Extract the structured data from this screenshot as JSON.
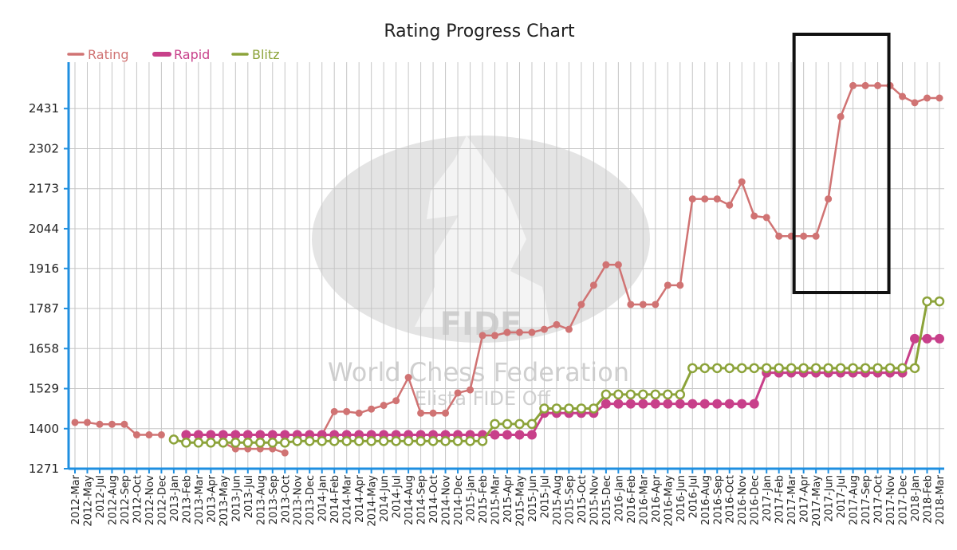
{
  "chart_data": {
    "type": "line",
    "title": "Rating Progress Chart",
    "watermark": {
      "line1": "FIDE",
      "line2": "World Chess Federation",
      "line3": "Elista FIDE Off"
    },
    "y_ticks": [
      1271,
      1400,
      1529,
      1658,
      1787,
      1916,
      2044,
      2173,
      2302,
      2431
    ],
    "ylim": [
      1271,
      2560
    ],
    "grid": true,
    "legend_position": "top-left",
    "highlight_box": {
      "from": "2017-Apr",
      "to": "2017-Oct"
    },
    "categories": [
      "2012-Mar",
      "2012-May",
      "2012-Jul",
      "2012-Aug",
      "2012-Sep",
      "2012-Oct",
      "2012-Nov",
      "2012-Dec",
      "2013-Jan",
      "2013-Feb",
      "2013-Mar",
      "2013-Apr",
      "2013-May",
      "2013-Jun",
      "2013-Jul",
      "2013-Aug",
      "2013-Sep",
      "2013-Oct",
      "2013-Nov",
      "2013-Dec",
      "2014-Jan",
      "2014-Feb",
      "2014-Mar",
      "2014-Apr",
      "2014-May",
      "2014-Jun",
      "2014-Jul",
      "2014-Aug",
      "2014-Sep",
      "2014-Oct",
      "2014-Nov",
      "2014-Dec",
      "2015-Jan",
      "2015-Feb",
      "2015-Mar",
      "2015-Apr",
      "2015-May",
      "2015-Jun",
      "2015-Jul",
      "2015-Aug",
      "2015-Sep",
      "2015-Oct",
      "2015-Nov",
      "2015-Dec",
      "2016-Jan",
      "2016-Feb",
      "2016-Mar",
      "2016-Apr",
      "2016-May",
      "2016-Jun",
      "2016-Jul",
      "2016-Aug",
      "2016-Sep",
      "2016-Oct",
      "2016-Nov",
      "2016-Dec",
      "2017-Jan",
      "2017-Feb",
      "2017-Mar",
      "2017-Apr",
      "2017-May",
      "2017-Jun",
      "2017-Jul",
      "2017-Aug",
      "2017-Sep",
      "2017-Oct",
      "2017-Nov",
      "2017-Dec",
      "2018-Jan",
      "2018-Feb",
      "2018-Mar"
    ],
    "series": [
      {
        "name": "Rating",
        "color": "#d07373",
        "marker": "small-dot",
        "values": [
          1420,
          1420,
          1414,
          1414,
          1414,
          1380,
          1380,
          1380,
          null,
          1355,
          1355,
          1355,
          1355,
          1335,
          1335,
          1335,
          1335,
          1322,
          null,
          null,
          1380,
          1455,
          1455,
          1450,
          1463,
          1475,
          1490,
          1565,
          1450,
          1450,
          1450,
          1515,
          1525,
          1700,
          1700,
          1710,
          1710,
          1710,
          1720,
          1735,
          1720,
          1800,
          1862,
          1928,
          1928,
          1800,
          1800,
          1800,
          1862,
          1862,
          2140,
          2140,
          2140,
          2120,
          2195,
          2085,
          2080,
          2020,
          2020,
          2020,
          2020,
          2140,
          2405,
          2505,
          2505,
          2505,
          2505,
          2470,
          2450,
          2465,
          2465
        ]
      },
      {
        "name": "Rapid",
        "color": "#c8408a",
        "marker": "large-dot",
        "values": [
          null,
          null,
          null,
          null,
          null,
          null,
          null,
          null,
          null,
          1380,
          1380,
          1380,
          1380,
          1380,
          1380,
          1380,
          1380,
          1380,
          1380,
          1380,
          1380,
          1380,
          1380,
          1380,
          1380,
          1380,
          1380,
          1380,
          1380,
          1380,
          1380,
          1380,
          1380,
          1380,
          1380,
          1380,
          1380,
          1380,
          1450,
          1450,
          1450,
          1450,
          1450,
          1480,
          1480,
          1480,
          1480,
          1480,
          1480,
          1480,
          1480,
          1480,
          1480,
          1480,
          1480,
          1480,
          1580,
          1580,
          1580,
          1580,
          1580,
          1580,
          1580,
          1580,
          1580,
          1580,
          1580,
          1580,
          1690,
          1690,
          1690
        ]
      },
      {
        "name": "Blitz",
        "color": "#8ca33a",
        "marker": "hollow-circle",
        "values": [
          null,
          null,
          null,
          null,
          null,
          null,
          null,
          null,
          1365,
          1355,
          1355,
          1355,
          1355,
          1355,
          1355,
          1355,
          1355,
          1355,
          1360,
          1360,
          1360,
          1360,
          1360,
          1360,
          1360,
          1360,
          1360,
          1360,
          1360,
          1360,
          1360,
          1360,
          1360,
          1360,
          1415,
          1415,
          1415,
          1415,
          1465,
          1465,
          1465,
          1465,
          1465,
          1510,
          1510,
          1510,
          1510,
          1510,
          1510,
          1510,
          1595,
          1595,
          1595,
          1595,
          1595,
          1595,
          1595,
          1595,
          1595,
          1595,
          1595,
          1595,
          1595,
          1595,
          1595,
          1595,
          1595,
          1595,
          1595,
          1810,
          1810
        ]
      }
    ]
  }
}
